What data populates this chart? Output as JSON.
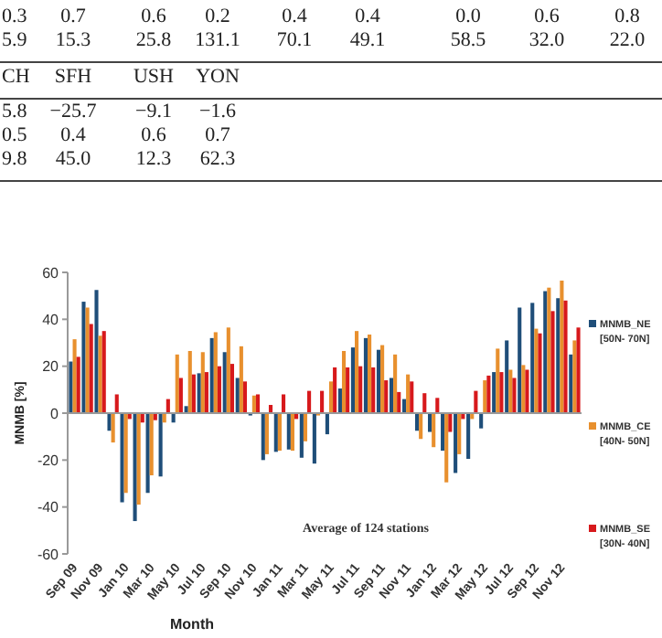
{
  "chart_data": [
    {
      "type": "other",
      "cell_labels": [
        [
          "0.3",
          "0.7",
          "0.6",
          "0.2",
          "0.4",
          "0.4",
          "0.0",
          "0.6",
          "0.8"
        ],
        [
          "5.9",
          "15.3",
          "25.8",
          "131.1",
          "70.1",
          "49.1",
          "58.5",
          "32.0",
          "22.0"
        ],
        [
          "CH",
          "SFH",
          "USH",
          "YON"
        ],
        [
          "5.8",
          "−25.7",
          "−9.1",
          "−1.6"
        ],
        [
          "0.5",
          "0.4",
          "0.6",
          "0.7"
        ],
        [
          "9.8",
          "45.0",
          "12.3",
          "62.3"
        ]
      ]
    },
    {
      "type": "bar",
      "xlabel": "Month",
      "ylabel": "MNMB [%]",
      "annotations": [
        "Average of 124 stations"
      ],
      "categories": [
        "Sep 09",
        null,
        "Nov 09",
        null,
        "Jan 10",
        null,
        "Mar 10",
        null,
        "May 10",
        null,
        "Jul 10",
        null,
        "Sep 10",
        null,
        "Nov 10",
        null,
        "Jan 11",
        null,
        "Mar 11",
        null,
        "May 11",
        null,
        "Jul 11",
        null,
        "Sep 11",
        null,
        "Nov 11",
        null,
        "Jan 12",
        null,
        "Mar 12",
        null,
        "May 12",
        null,
        "Jul 12",
        null,
        "Sep 12",
        null,
        "Nov 12",
        null
      ],
      "series": [
        {
          "name": "MNMB_NE [50N- 70N]",
          "color": "#1f4e79",
          "values": [
            22,
            47.5,
            52.5,
            -7.5,
            -38,
            -46,
            -34,
            -27,
            -4,
            3,
            17,
            32,
            26,
            15,
            -1,
            -20,
            -16.5,
            -15.5,
            -19,
            -21.5,
            -9,
            10.5,
            28,
            32,
            27,
            15,
            6,
            -7.5,
            -8,
            -16,
            -25.5,
            -19.5,
            -6.5,
            17.5,
            31,
            45,
            47,
            52,
            49,
            25
          ]
        },
        {
          "name": "MNMB_CE [40N- 50N]",
          "color": "#e8902e",
          "values": [
            31.5,
            45,
            33,
            -12.5,
            -34,
            -39,
            -26.5,
            -4,
            25,
            26.5,
            26,
            34.5,
            36.5,
            28.5,
            7.5,
            -17.5,
            -16,
            -16,
            -12,
            -1,
            13.5,
            26.5,
            35,
            33.5,
            29,
            25,
            16.5,
            -11,
            -14.5,
            -29.5,
            -17.5,
            -2.5,
            14,
            27.5,
            18.5,
            20.5,
            36,
            53.5,
            56.5,
            31
          ]
        },
        {
          "name": "MNMB_SE [30N- 40N]",
          "color": "#d7191c",
          "values": [
            24,
            38,
            35,
            8,
            -2.5,
            -4,
            -3,
            6,
            15,
            16.5,
            17.5,
            20,
            21,
            13.5,
            8,
            3.5,
            8,
            -2.5,
            9.5,
            9.5,
            19.5,
            19.5,
            20,
            19.5,
            14,
            9,
            13.5,
            8.5,
            6.5,
            -8,
            -2.5,
            9.5,
            16,
            17.5,
            15,
            18.5,
            34,
            43.5,
            48,
            36.5
          ]
        }
      ],
      "ylim": [
        -60,
        60
      ],
      "yticks": [
        -60,
        -40,
        -20,
        0,
        20,
        40,
        60
      ],
      "legend": "right"
    }
  ]
}
